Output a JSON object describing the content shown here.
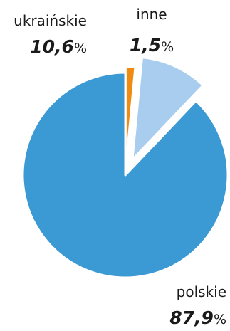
{
  "chart_data": {
    "type": "pie",
    "title": "",
    "unit": "%",
    "start": "top",
    "direction": "counterclockwise",
    "exploded": true,
    "slices": [
      {
        "label": "polskie",
        "value": 87.9,
        "display": "87,9",
        "color": "#3b99d4"
      },
      {
        "label": "ukraińskie",
        "value": 10.6,
        "display": "10,6",
        "color": "#a8cdee"
      },
      {
        "label": "inne",
        "value": 1.5,
        "display": "1,5",
        "color": "#ef8a12"
      }
    ]
  }
}
